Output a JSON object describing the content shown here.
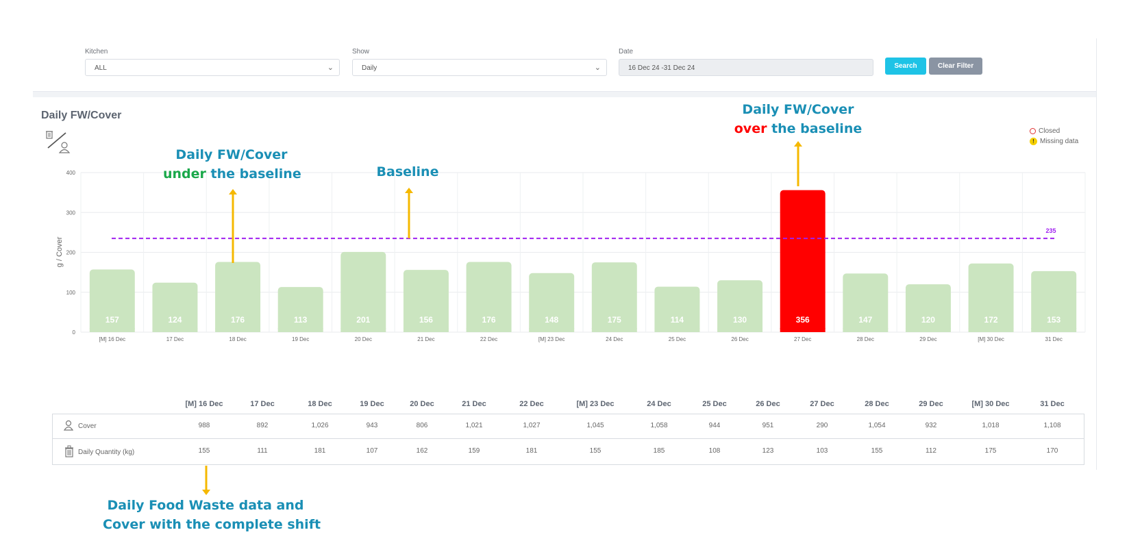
{
  "filters": {
    "kitchen_label": "Kitchen",
    "kitchen_value": "ALL",
    "show_label": "Show",
    "show_value": "Daily",
    "date_label": "Date",
    "date_value": "16 Dec 24 -31 Dec 24",
    "search_label": "Search",
    "clear_label": "Clear Filter"
  },
  "chart_title": "Daily FW/Cover",
  "legend": {
    "closed": "Closed",
    "missing": "Missing data"
  },
  "annotations": {
    "under_line1": "Daily FW/Cover",
    "under_word": "under",
    "under_rest": " the baseline",
    "baseline": "Baseline",
    "over_line1": "Daily FW/Cover",
    "over_word": "over",
    "over_rest": " the baseline",
    "table_line1": "Daily Food Waste data and",
    "table_line2": "Cover with the complete shift"
  },
  "colors": {
    "bar_normal": "#cbe5c0",
    "bar_over": "#ff0000",
    "baseline": "#a020f0",
    "arrow": "#f5b800",
    "annotation": "#1a8fb5"
  },
  "chart_data": {
    "type": "bar",
    "categories": [
      "[M] 16 Dec",
      "17 Dec",
      "18 Dec",
      "19 Dec",
      "20 Dec",
      "21 Dec",
      "22 Dec",
      "[M] 23 Dec",
      "24 Dec",
      "25 Dec",
      "26 Dec",
      "27 Dec",
      "28 Dec",
      "29 Dec",
      "[M] 30 Dec",
      "31 Dec"
    ],
    "values": [
      157,
      124,
      176,
      113,
      201,
      156,
      176,
      148,
      175,
      114,
      130,
      356,
      147,
      120,
      172,
      153
    ],
    "ylabel": "g / Cover",
    "ylim": [
      0,
      400
    ],
    "yticks": [
      0,
      100,
      200,
      300,
      400
    ],
    "baseline": 235,
    "baseline_label": "235",
    "highlight_index": 11,
    "grid": true
  },
  "table": {
    "headers": [
      "[M] 16 Dec",
      "17 Dec",
      "18 Dec",
      "19 Dec",
      "20 Dec",
      "21 Dec",
      "22 Dec",
      "[M] 23 Dec",
      "24 Dec",
      "25 Dec",
      "26 Dec",
      "27 Dec",
      "28 Dec",
      "29 Dec",
      "[M] 30 Dec",
      "31 Dec"
    ],
    "rows": [
      {
        "label": "Cover",
        "icon": "person-icon",
        "values": [
          "988",
          "892",
          "1,026",
          "943",
          "806",
          "1,021",
          "1,027",
          "1,045",
          "1,058",
          "944",
          "951",
          "290",
          "1,054",
          "932",
          "1,018",
          "1,108"
        ]
      },
      {
        "label": "Daily Quantity (kg)",
        "icon": "waste-bin-icon",
        "values": [
          "155",
          "111",
          "181",
          "107",
          "162",
          "159",
          "181",
          "155",
          "185",
          "108",
          "123",
          "103",
          "155",
          "112",
          "175",
          "170"
        ]
      }
    ]
  }
}
